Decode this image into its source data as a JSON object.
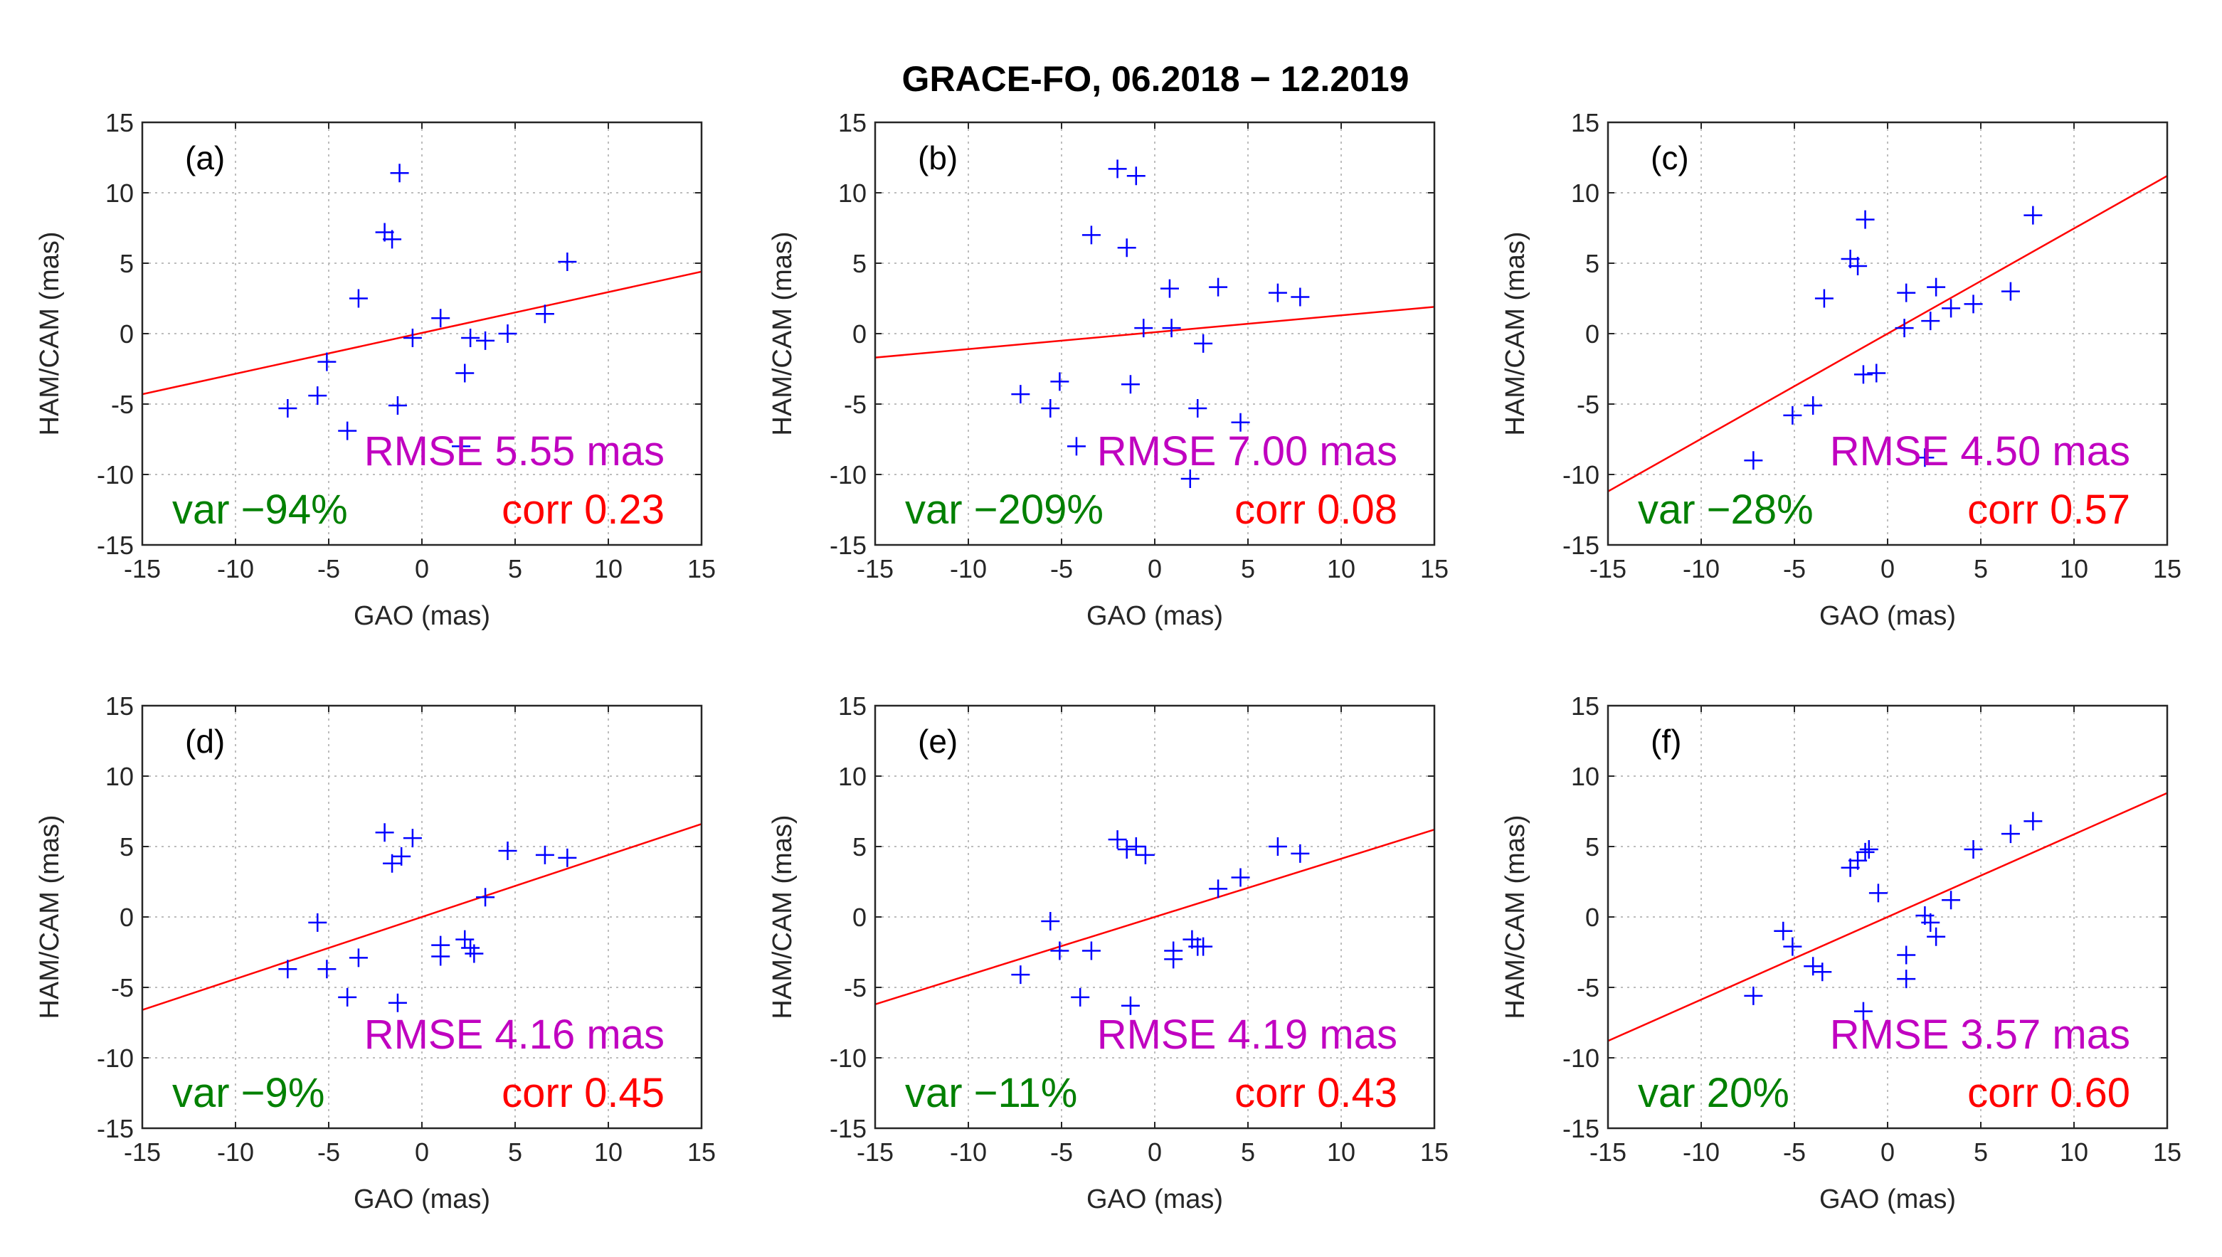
{
  "title": "GRACE-FO, 06.2018 − 12.2019",
  "chart_data": [
    {
      "type": "scatter",
      "label": "(a)",
      "xlabel": "GAO (mas)",
      "ylabel": "HAM/CAM (mas)",
      "xlim": [
        -15,
        15
      ],
      "ylim": [
        -15,
        15
      ],
      "xticks": [
        "-15",
        "-10",
        "-5",
        "0",
        "5",
        "10",
        "15"
      ],
      "yticks": [
        "15",
        "10",
        "5",
        "0",
        "-5",
        "-10",
        "-15"
      ],
      "grid": true,
      "points": [
        [
          -1.2,
          11.4
        ],
        [
          -2,
          7.2
        ],
        [
          -1.6,
          6.7
        ],
        [
          -3.4,
          2.5
        ],
        [
          -0.5,
          -0.3
        ],
        [
          1,
          1.1
        ],
        [
          2.6,
          -0.3
        ],
        [
          3.4,
          -0.5
        ],
        [
          4.6,
          0
        ],
        [
          6.6,
          1.4
        ],
        [
          7.8,
          5.1
        ],
        [
          -5.1,
          -2
        ],
        [
          -5.6,
          -4.4
        ],
        [
          -7.2,
          -5.3
        ],
        [
          -1.3,
          -5.1
        ],
        [
          2.3,
          -2.8
        ],
        [
          2.1,
          -8
        ],
        [
          -4,
          -6.9
        ]
      ],
      "fit": {
        "x": [
          -15,
          15
        ],
        "y": [
          -4.3,
          4.4
        ]
      },
      "rmse_text": "RMSE 5.55 mas",
      "var_text": "var −94%",
      "corr_text": "corr 0.23",
      "colors": {
        "points": "#0000ff",
        "fit": "#ff0000",
        "rmse": "#c000c0",
        "var": "#008000",
        "corr": "#ff0000"
      }
    },
    {
      "type": "scatter",
      "label": "(b)",
      "xlabel": "GAO (mas)",
      "ylabel": "HAM/CAM (mas)",
      "xlim": [
        -15,
        15
      ],
      "ylim": [
        -15,
        15
      ],
      "xticks": [
        "-15",
        "-10",
        "-5",
        "0",
        "5",
        "10",
        "15"
      ],
      "yticks": [
        "15",
        "10",
        "5",
        "0",
        "-5",
        "-10",
        "-15"
      ],
      "grid": true,
      "points": [
        [
          -2,
          11.7
        ],
        [
          -1,
          11.2
        ],
        [
          -3.4,
          7
        ],
        [
          -1.5,
          6.1
        ],
        [
          0.8,
          3.2
        ],
        [
          3.4,
          3.3
        ],
        [
          6.6,
          2.9
        ],
        [
          7.8,
          2.6
        ],
        [
          -0.6,
          0.4
        ],
        [
          0.9,
          0.4
        ],
        [
          2.6,
          -0.7
        ],
        [
          -7.2,
          -4.3
        ],
        [
          -5.1,
          -3.4
        ],
        [
          -5.6,
          -5.3
        ],
        [
          -1.3,
          -3.6
        ],
        [
          2.3,
          -5.3
        ],
        [
          4.6,
          -6.3
        ],
        [
          1.9,
          -10.3
        ],
        [
          -4.2,
          -8
        ]
      ],
      "fit": {
        "x": [
          -15,
          15
        ],
        "y": [
          -1.7,
          1.9
        ]
      },
      "rmse_text": "RMSE 7.00 mas",
      "var_text": "var −209%",
      "corr_text": "corr 0.08",
      "colors": {
        "points": "#0000ff",
        "fit": "#ff0000",
        "rmse": "#c000c0",
        "var": "#008000",
        "corr": "#ff0000"
      }
    },
    {
      "type": "scatter",
      "label": "(c)",
      "xlabel": "GAO (mas)",
      "ylabel": "HAM/CAM (mas)",
      "xlim": [
        -15,
        15
      ],
      "ylim": [
        -15,
        15
      ],
      "xticks": [
        "-15",
        "-10",
        "-5",
        "0",
        "5",
        "10",
        "15"
      ],
      "yticks": [
        "15",
        "10",
        "5",
        "0",
        "-5",
        "-10",
        "-15"
      ],
      "grid": true,
      "points": [
        [
          -1.2,
          8.1
        ],
        [
          -2,
          5.3
        ],
        [
          -1.6,
          4.8
        ],
        [
          -3.4,
          2.5
        ],
        [
          1,
          2.9
        ],
        [
          2.6,
          3.3
        ],
        [
          3.4,
          1.8
        ],
        [
          4.6,
          2.1
        ],
        [
          6.6,
          3
        ],
        [
          7.8,
          8.4
        ],
        [
          0.9,
          0.4
        ],
        [
          2.3,
          0.9
        ],
        [
          -0.6,
          -2.8
        ],
        [
          -1.3,
          -2.9
        ],
        [
          -4,
          -5.1
        ],
        [
          -5.1,
          -5.8
        ],
        [
          -7.2,
          -9
        ],
        [
          2,
          -8.8
        ]
      ],
      "fit": {
        "x": [
          -15,
          15
        ],
        "y": [
          -11.2,
          11.2
        ]
      },
      "rmse_text": "RMSE 4.50 mas",
      "var_text": "var −28%",
      "corr_text": "corr 0.57",
      "colors": {
        "points": "#0000ff",
        "fit": "#ff0000",
        "rmse": "#c000c0",
        "var": "#008000",
        "corr": "#ff0000"
      }
    },
    {
      "type": "scatter",
      "label": "(d)",
      "xlabel": "GAO (mas)",
      "ylabel": "HAM/CAM (mas)",
      "xlim": [
        -15,
        15
      ],
      "ylim": [
        -15,
        15
      ],
      "xticks": [
        "-15",
        "-10",
        "-5",
        "0",
        "5",
        "10",
        "15"
      ],
      "yticks": [
        "15",
        "10",
        "5",
        "0",
        "-5",
        "-10",
        "-15"
      ],
      "grid": true,
      "points": [
        [
          -2,
          6
        ],
        [
          -0.5,
          5.6
        ],
        [
          -1.1,
          4.3
        ],
        [
          -1.6,
          3.8
        ],
        [
          4.6,
          4.7
        ],
        [
          6.6,
          4.4
        ],
        [
          7.8,
          4.2
        ],
        [
          3.4,
          1.4
        ],
        [
          -5.6,
          -0.4
        ],
        [
          -3.4,
          -2.9
        ],
        [
          -5.1,
          -3.7
        ],
        [
          -7.2,
          -3.7
        ],
        [
          1,
          -2
        ],
        [
          1,
          -2.8
        ],
        [
          2.3,
          -1.6
        ],
        [
          2.6,
          -2.2
        ],
        [
          2.8,
          -2.6
        ],
        [
          -4,
          -5.7
        ],
        [
          -1.3,
          -6.1
        ]
      ],
      "fit": {
        "x": [
          -15,
          15
        ],
        "y": [
          -6.6,
          6.6
        ]
      },
      "rmse_text": "RMSE 4.16 mas",
      "var_text": "var −9%",
      "corr_text": "corr 0.45",
      "colors": {
        "points": "#0000ff",
        "fit": "#ff0000",
        "rmse": "#c000c0",
        "var": "#008000",
        "corr": "#ff0000"
      }
    },
    {
      "type": "scatter",
      "label": "(e)",
      "xlabel": "GAO (mas)",
      "ylabel": "HAM/CAM (mas)",
      "xlim": [
        -15,
        15
      ],
      "ylim": [
        -15,
        15
      ],
      "xticks": [
        "-15",
        "-10",
        "-5",
        "0",
        "5",
        "10",
        "15"
      ],
      "yticks": [
        "15",
        "10",
        "5",
        "0",
        "-5",
        "-10",
        "-15"
      ],
      "grid": true,
      "points": [
        [
          -2,
          5.5
        ],
        [
          -1.5,
          4.8
        ],
        [
          -1,
          5
        ],
        [
          -0.5,
          4.4
        ],
        [
          6.6,
          5
        ],
        [
          7.8,
          4.5
        ],
        [
          4.6,
          2.8
        ],
        [
          3.4,
          2
        ],
        [
          -5.6,
          -0.3
        ],
        [
          -5.1,
          -2.4
        ],
        [
          -3.4,
          -2.4
        ],
        [
          -7.2,
          -4.1
        ],
        [
          1,
          -2.4
        ],
        [
          1,
          -3
        ],
        [
          2,
          -1.6
        ],
        [
          2.3,
          -2.1
        ],
        [
          2.6,
          -2.1
        ],
        [
          -4,
          -5.7
        ],
        [
          -1.3,
          -6.3
        ]
      ],
      "fit": {
        "x": [
          -15,
          15
        ],
        "y": [
          -6.2,
          6.2
        ]
      },
      "rmse_text": "RMSE 4.19 mas",
      "var_text": "var −11%",
      "corr_text": "corr 0.43",
      "colors": {
        "points": "#0000ff",
        "fit": "#ff0000",
        "rmse": "#c000c0",
        "var": "#008000",
        "corr": "#ff0000"
      }
    },
    {
      "type": "scatter",
      "label": "(f)",
      "xlabel": "GAO (mas)",
      "ylabel": "HAM/CAM (mas)",
      "xlim": [
        -15,
        15
      ],
      "ylim": [
        -15,
        15
      ],
      "xticks": [
        "-15",
        "-10",
        "-5",
        "0",
        "5",
        "10",
        "15"
      ],
      "yticks": [
        "15",
        "10",
        "5",
        "0",
        "-5",
        "-10",
        "-15"
      ],
      "grid": true,
      "points": [
        [
          -1,
          4.8
        ],
        [
          -1.6,
          4
        ],
        [
          -1.2,
          4.6
        ],
        [
          -2,
          3.5
        ],
        [
          -0.5,
          1.7
        ],
        [
          4.6,
          4.8
        ],
        [
          6.6,
          5.9
        ],
        [
          7.8,
          6.8
        ],
        [
          3.4,
          1.2
        ],
        [
          2,
          0.1
        ],
        [
          2.3,
          -0.4
        ],
        [
          2.6,
          -1.4
        ],
        [
          1,
          -2.7
        ],
        [
          1,
          -4.4
        ],
        [
          -5.1,
          -2.1
        ],
        [
          -5.6,
          -1
        ],
        [
          -4,
          -3.5
        ],
        [
          -3.5,
          -3.9
        ],
        [
          -7.2,
          -5.6
        ],
        [
          -1.3,
          -6.7
        ]
      ],
      "fit": {
        "x": [
          -15,
          15
        ],
        "y": [
          -8.8,
          8.8
        ]
      },
      "rmse_text": "RMSE 3.57 mas",
      "var_text": "var 20%",
      "corr_text": "corr 0.60",
      "colors": {
        "points": "#0000ff",
        "fit": "#ff0000",
        "rmse": "#c000c0",
        "var": "#008000",
        "corr": "#ff0000"
      }
    }
  ]
}
